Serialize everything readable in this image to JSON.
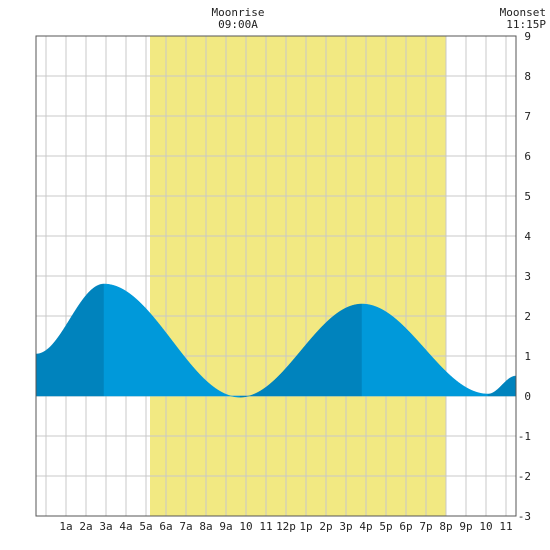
{
  "header": {
    "moonrise_label": "Moonrise",
    "moonrise_time": "09:00A",
    "moonset_label": "Moonset",
    "moonset_time": "11:15P"
  },
  "chart_data": {
    "type": "area",
    "title": "",
    "xlabel": "",
    "ylabel": "",
    "x_range_hours": [
      -0.5,
      23.5
    ],
    "ylim": [
      -3,
      9
    ],
    "y_ticks": [
      -3,
      -2,
      -1,
      0,
      1,
      2,
      3,
      4,
      5,
      6,
      7,
      8,
      9
    ],
    "x_ticks": [
      {
        "hour": 1,
        "label": "1a"
      },
      {
        "hour": 2,
        "label": "2a"
      },
      {
        "hour": 3,
        "label": "3a"
      },
      {
        "hour": 4,
        "label": "4a"
      },
      {
        "hour": 5,
        "label": "5a"
      },
      {
        "hour": 6,
        "label": "6a"
      },
      {
        "hour": 7,
        "label": "7a"
      },
      {
        "hour": 8,
        "label": "8a"
      },
      {
        "hour": 9,
        "label": "9a"
      },
      {
        "hour": 10,
        "label": "10"
      },
      {
        "hour": 11,
        "label": "11"
      },
      {
        "hour": 12,
        "label": "12p"
      },
      {
        "hour": 13,
        "label": "1p"
      },
      {
        "hour": 14,
        "label": "2p"
      },
      {
        "hour": 15,
        "label": "3p"
      },
      {
        "hour": 16,
        "label": "4p"
      },
      {
        "hour": 17,
        "label": "5p"
      },
      {
        "hour": 18,
        "label": "6p"
      },
      {
        "hour": 19,
        "label": "7p"
      },
      {
        "hour": 20,
        "label": "8p"
      },
      {
        "hour": 21,
        "label": "9p"
      },
      {
        "hour": 22,
        "label": "10"
      },
      {
        "hour": 23,
        "label": "11"
      }
    ],
    "daylight_hours": [
      5.2,
      20.0
    ],
    "tide_extremes": [
      {
        "hour": -0.5,
        "height": 1.05
      },
      {
        "hour": 2.9,
        "height": 2.8
      },
      {
        "hour": 9.7,
        "height": -0.03
      },
      {
        "hour": 15.8,
        "height": 2.3
      },
      {
        "hour": 22.1,
        "height": 0.05
      },
      {
        "hour": 23.5,
        "height": 0.5
      }
    ],
    "grid": true,
    "colors": {
      "daylight": "#f2e982",
      "tide_rising": "#0083bd",
      "tide_falling": "#0099da",
      "grid": "#c8c8c8",
      "axis": "#555555"
    }
  }
}
